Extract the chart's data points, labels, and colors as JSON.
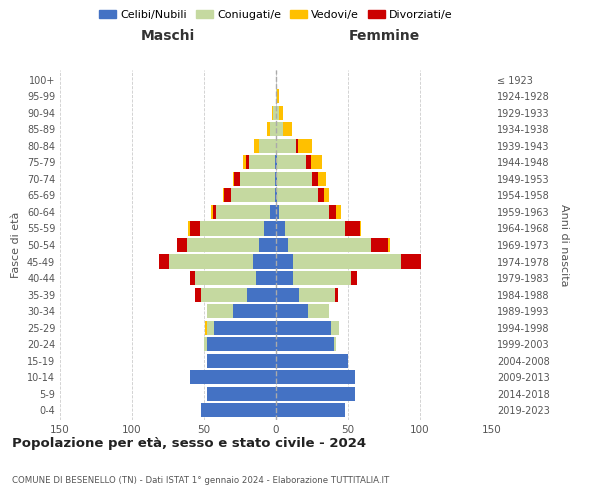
{
  "age_groups": [
    "0-4",
    "5-9",
    "10-14",
    "15-19",
    "20-24",
    "25-29",
    "30-34",
    "35-39",
    "40-44",
    "45-49",
    "50-54",
    "55-59",
    "60-64",
    "65-69",
    "70-74",
    "75-79",
    "80-84",
    "85-89",
    "90-94",
    "95-99",
    "100+"
  ],
  "birth_years": [
    "2019-2023",
    "2014-2018",
    "2009-2013",
    "2004-2008",
    "1999-2003",
    "1994-1998",
    "1989-1993",
    "1984-1988",
    "1979-1983",
    "1974-1978",
    "1969-1973",
    "1964-1968",
    "1959-1963",
    "1954-1958",
    "1949-1953",
    "1944-1948",
    "1939-1943",
    "1934-1938",
    "1929-1933",
    "1924-1928",
    "≤ 1923"
  ],
  "maschi": {
    "celibi": [
      52,
      48,
      60,
      48,
      48,
      43,
      30,
      20,
      14,
      16,
      12,
      8,
      4,
      1,
      1,
      1,
      0,
      0,
      0,
      0,
      0
    ],
    "coniugati": [
      0,
      0,
      0,
      0,
      2,
      5,
      18,
      32,
      42,
      58,
      50,
      45,
      38,
      30,
      24,
      18,
      12,
      4,
      2,
      0,
      0
    ],
    "vedovi": [
      0,
      0,
      0,
      0,
      0,
      1,
      0,
      0,
      0,
      0,
      0,
      1,
      1,
      1,
      1,
      2,
      3,
      2,
      1,
      0,
      0
    ],
    "divorziati": [
      0,
      0,
      0,
      0,
      0,
      0,
      0,
      4,
      4,
      7,
      7,
      7,
      2,
      5,
      4,
      2,
      0,
      0,
      0,
      0,
      0
    ]
  },
  "femmine": {
    "nubili": [
      48,
      55,
      55,
      50,
      40,
      38,
      22,
      16,
      12,
      12,
      8,
      6,
      2,
      1,
      1,
      1,
      0,
      0,
      0,
      0,
      0
    ],
    "coniugate": [
      0,
      0,
      0,
      0,
      2,
      6,
      15,
      25,
      40,
      75,
      58,
      42,
      35,
      28,
      24,
      20,
      14,
      5,
      2,
      1,
      0
    ],
    "vedove": [
      0,
      0,
      0,
      0,
      0,
      0,
      0,
      0,
      0,
      0,
      1,
      1,
      3,
      4,
      6,
      8,
      10,
      6,
      3,
      1,
      0
    ],
    "divorziate": [
      0,
      0,
      0,
      0,
      0,
      0,
      0,
      2,
      4,
      14,
      12,
      10,
      5,
      4,
      4,
      3,
      1,
      0,
      0,
      0,
      0
    ]
  },
  "colors": {
    "celibi": "#4472c4",
    "coniugati": "#c5d9a0",
    "vedovi": "#ffc000",
    "divorziati": "#cc0000"
  },
  "xlim": 150,
  "title": "Popolazione per età, sesso e stato civile - 2024",
  "subtitle": "COMUNE DI BESENELLO (TN) - Dati ISTAT 1° gennaio 2024 - Elaborazione TUTTITALIA.IT",
  "ylabel_left": "Fasce di età",
  "ylabel_right": "Anni di nascita",
  "xlabel_left": "Maschi",
  "xlabel_right": "Femmine",
  "legend_labels": [
    "Celibi/Nubili",
    "Coniugati/e",
    "Vedovi/e",
    "Divorziati/e"
  ],
  "bg_color": "#ffffff",
  "grid_color": "#cccccc"
}
